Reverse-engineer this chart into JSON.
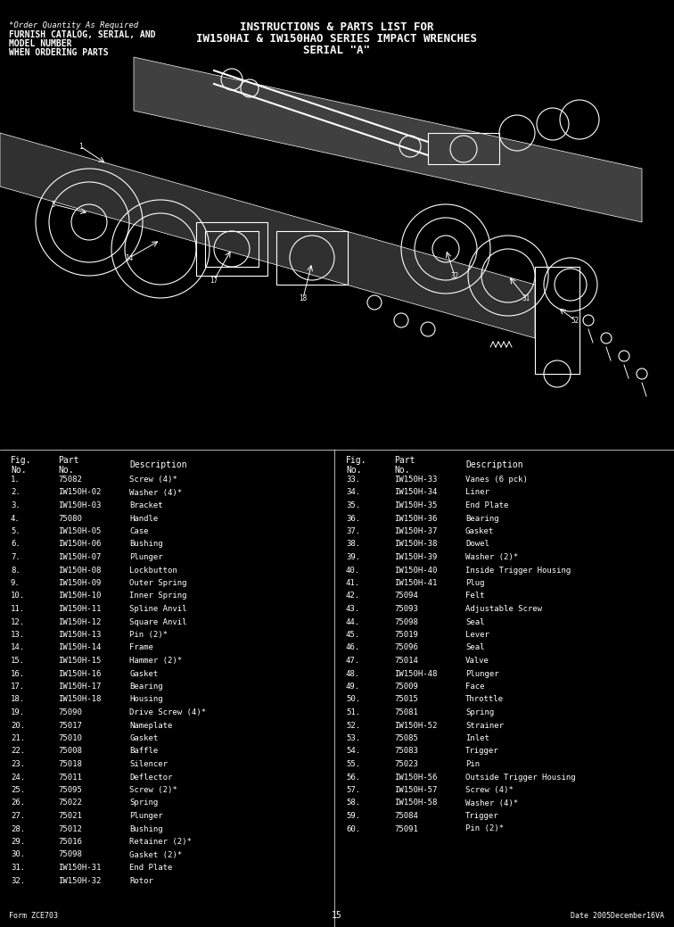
{
  "title_line1": "INSTRUCTIONS & PARTS LIST FOR",
  "title_line2": "IW150HAI & IW150HAO SERIES IMPACT WRENCHES",
  "title_line3": "SERIAL \"A\"",
  "note_line1": "*Order Quantity As Required",
  "note_line2": "FURNISH CATALOG, SERIAL, AND",
  "note_line3": "MODEL NUMBER",
  "note_line4": "WHEN ORDERING PARTS",
  "bg_color": "#000000",
  "text_color": "#ffffff",
  "col1_header": [
    "Fig.",
    "No."
  ],
  "col2_header": [
    "Part",
    "No."
  ],
  "col3_header": [
    "Description"
  ],
  "parts_left": [
    [
      "1.",
      "75082",
      "Screw (4)*"
    ],
    [
      "2.",
      "IW150H-02",
      "Washer (4)*"
    ],
    [
      "3.",
      "IW150H-03",
      "Bracket"
    ],
    [
      "4.",
      "75080",
      "Handle"
    ],
    [
      "5.",
      "IW150H-05",
      "Case"
    ],
    [
      "6.",
      "IW150H-06",
      "Bushing"
    ],
    [
      "7.",
      "IW150H-07",
      "Plunger"
    ],
    [
      "8.",
      "IW150H-08",
      "Lockbutton"
    ],
    [
      "9.",
      "IW150H-09",
      "Outer Spring"
    ],
    [
      "10.",
      "IW150H-10",
      "Inner Spring"
    ],
    [
      "11.",
      "IW150H-11",
      "Spline Anvil"
    ],
    [
      "12.",
      "IW150H-12",
      "Square Anvil"
    ],
    [
      "13.",
      "IW150H-13",
      "Pin (2)*"
    ],
    [
      "14.",
      "IW150H-14",
      "Frame"
    ],
    [
      "15.",
      "IW150H-15",
      "Hammer (2)*"
    ],
    [
      "16.",
      "IW150H-16",
      "Gasket"
    ],
    [
      "17.",
      "IW150H-17",
      "Bearing"
    ],
    [
      "18.",
      "IW150H-18",
      "Housing"
    ],
    [
      "19.",
      "75090",
      "Drive Screw (4)*"
    ],
    [
      "20.",
      "75017",
      "Nameplate"
    ],
    [
      "21.",
      "75010",
      "Gasket"
    ],
    [
      "22.",
      "75008",
      "Baffle"
    ],
    [
      "23.",
      "75018",
      "Silencer"
    ],
    [
      "24.",
      "75011",
      "Deflector"
    ],
    [
      "25.",
      "75095",
      "Screw (2)*"
    ],
    [
      "26.",
      "75022",
      "Spring"
    ],
    [
      "27.",
      "75021",
      "Plunger"
    ],
    [
      "28.",
      "75012",
      "Bushing"
    ],
    [
      "29.",
      "75016",
      "Retainer (2)*"
    ],
    [
      "30.",
      "75098",
      "Gasket (2)*"
    ],
    [
      "31.",
      "IW150H-31",
      "End Plate"
    ],
    [
      "32.",
      "IW150H-32",
      "Rotor"
    ]
  ],
  "parts_right": [
    [
      "33.",
      "IW150H-33",
      "Vanes (6 pck)"
    ],
    [
      "34.",
      "IW150H-34",
      "Liner"
    ],
    [
      "35.",
      "IW150H-35",
      "End Plate"
    ],
    [
      "36.",
      "IW150H-36",
      "Bearing"
    ],
    [
      "37.",
      "IW150H-37",
      "Gasket"
    ],
    [
      "38.",
      "IW150H-38",
      "Dowel"
    ],
    [
      "39.",
      "IW150H-39",
      "Washer (2)*"
    ],
    [
      "40.",
      "IW150H-40",
      "Inside Trigger Housing"
    ],
    [
      "41.",
      "IW150H-41",
      "Plug"
    ],
    [
      "42.",
      "75094",
      "Felt"
    ],
    [
      "43.",
      "75093",
      "Adjustable Screw"
    ],
    [
      "44.",
      "75098",
      "Seal"
    ],
    [
      "45.",
      "75019",
      "Lever"
    ],
    [
      "46.",
      "75096",
      "Seal"
    ],
    [
      "47.",
      "75014",
      "Valve"
    ],
    [
      "48.",
      "IW150H-48",
      "Plunger"
    ],
    [
      "49.",
      "75009",
      "Face"
    ],
    [
      "50.",
      "75015",
      "Throttle"
    ],
    [
      "51.",
      "75081",
      "Spring"
    ],
    [
      "52.",
      "IW150H-52",
      "Strainer"
    ],
    [
      "53.",
      "75085",
      "Inlet"
    ],
    [
      "54.",
      "75083",
      "Trigger"
    ],
    [
      "55.",
      "75023",
      "Pin"
    ],
    [
      "56.",
      "IW150H-56",
      "Outside Trigger Housing"
    ],
    [
      "57.",
      "IW150H-57",
      "Screw (4)*"
    ],
    [
      "58.",
      "IW150H-58",
      "Washer (4)*"
    ],
    [
      "59.",
      "75084",
      "Trigger"
    ],
    [
      "60.",
      "75091",
      "Pin (2)*"
    ]
  ],
  "footer_left": "Form ZCE703",
  "footer_center": "15",
  "footer_right": "Date 2005December16VA"
}
